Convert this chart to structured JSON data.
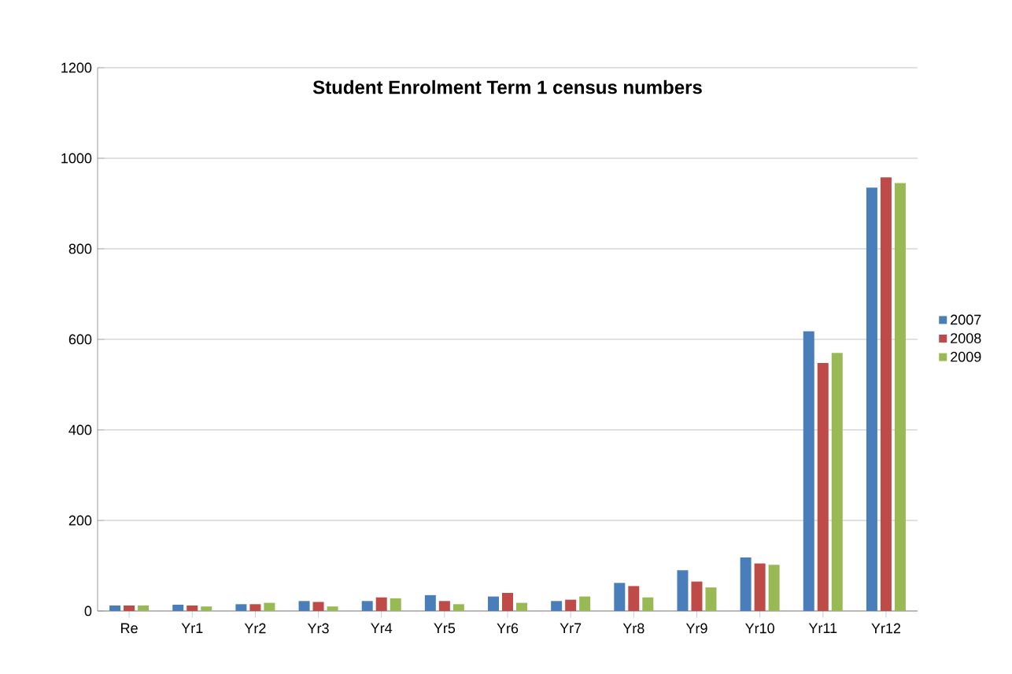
{
  "chart_data": {
    "type": "bar",
    "title": "Student Enrolment Term 1 census numbers",
    "categories": [
      "Re",
      "Yr1",
      "Yr2",
      "Yr3",
      "Yr4",
      "Yr5",
      "Yr6",
      "Yr7",
      "Yr8",
      "Yr9",
      "Yr10",
      "Yr11",
      "Yr12"
    ],
    "series": [
      {
        "name": "2007",
        "color": "#4a7ebb",
        "values": [
          12,
          14,
          15,
          22,
          22,
          35,
          32,
          22,
          62,
          90,
          118,
          618,
          935
        ]
      },
      {
        "name": "2008",
        "color": "#be4b48",
        "values": [
          12,
          12,
          15,
          20,
          30,
          22,
          40,
          25,
          55,
          65,
          105,
          548,
          958
        ]
      },
      {
        "name": "2009",
        "color": "#98b954",
        "values": [
          12,
          10,
          18,
          10,
          28,
          15,
          18,
          32,
          30,
          52,
          102,
          570,
          945
        ]
      }
    ],
    "ylim": [
      0,
      1200
    ],
    "yticks": [
      0,
      200,
      400,
      600,
      800,
      1000,
      1200
    ],
    "grid": "y",
    "legend": "right"
  }
}
